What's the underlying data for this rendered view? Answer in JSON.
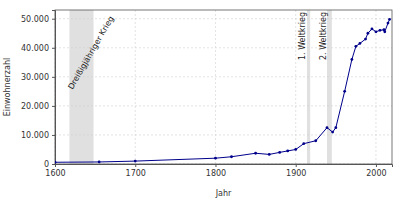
{
  "chart_data": {
    "type": "line",
    "x_label": "Jahr",
    "y_label": "Einwohnerzahl",
    "x": [
      1600,
      1655,
      1700,
      1800,
      1820,
      1850,
      1867,
      1880,
      1890,
      1900,
      1910,
      1925,
      1939,
      1946,
      1950,
      1961,
      1970,
      1975,
      1980,
      1987,
      1990,
      1995,
      2000,
      2005,
      2010,
      2011,
      2015,
      2017
    ],
    "values": [
      600,
      700,
      1000,
      2000,
      2500,
      3700,
      3300,
      4000,
      4500,
      5000,
      7000,
      8000,
      12500,
      11000,
      12500,
      25000,
      36000,
      40500,
      41500,
      43000,
      45000,
      46500,
      45500,
      46000,
      46200,
      45500,
      48500,
      49800
    ],
    "color": "#00008b",
    "marker": "circle",
    "xlim": [
      1600,
      2020
    ],
    "ylim": [
      0,
      53000
    ],
    "xticks": [
      1600,
      1700,
      1800,
      1900,
      2000
    ],
    "yticks": [
      0,
      {
        "value": 10000,
        "label": "10.000"
      },
      {
        "value": 20000,
        "label": "20.000"
      },
      {
        "value": 30000,
        "label": "30.000"
      },
      {
        "value": 40000,
        "label": "40.000"
      },
      {
        "value": 50000,
        "label": "50.000"
      }
    ],
    "grid": true,
    "annotations": [
      {
        "text": "Dreißigjähriger Krieg",
        "x": [
          1618,
          1648
        ]
      },
      {
        "text": "1. Weltkrieg",
        "x": [
          1914,
          1918
        ]
      },
      {
        "text": "2. Weltkrieg",
        "x": [
          1939,
          1945
        ]
      }
    ]
  }
}
